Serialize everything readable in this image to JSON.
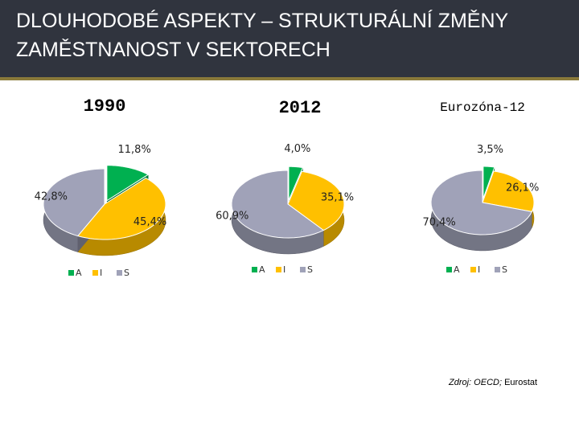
{
  "header": {
    "title": [
      "DLOUHODOBÉ ASPEKTY – STRUKTURÁLNÍ ZMĚNY",
      "ZAMĚSTNANOST V SEKTORECH"
    ]
  },
  "chart_data": [
    {
      "type": "pie",
      "title": "1990",
      "categories": [
        "A",
        "I",
        "S"
      ],
      "values": [
        11.8,
        45.4,
        42.8
      ],
      "value_labels": [
        "11,8%",
        "45,4%",
        "42,8%"
      ],
      "colors": [
        "#00b050",
        "#ffc000",
        "#a0a2b8"
      ],
      "legend": "bottom"
    },
    {
      "type": "pie",
      "title": "2012",
      "categories": [
        "A",
        "I",
        "S"
      ],
      "values": [
        4.0,
        35.1,
        60.9
      ],
      "value_labels": [
        "4,0%",
        "35,1%",
        "60,9%"
      ],
      "colors": [
        "#00b050",
        "#ffc000",
        "#a0a2b8"
      ],
      "legend": "bottom"
    },
    {
      "type": "pie",
      "title": "Eurozóna-12",
      "categories": [
        "A",
        "I",
        "S"
      ],
      "values": [
        3.5,
        26.1,
        70.4
      ],
      "value_labels": [
        "3,5%",
        "26,1%",
        "70,4%"
      ],
      "colors": [
        "#00b050",
        "#ffc000",
        "#a0a2b8"
      ],
      "legend": "bottom"
    }
  ],
  "source": {
    "label": "Zdroj: OECD;",
    "name": "Eurostat"
  }
}
